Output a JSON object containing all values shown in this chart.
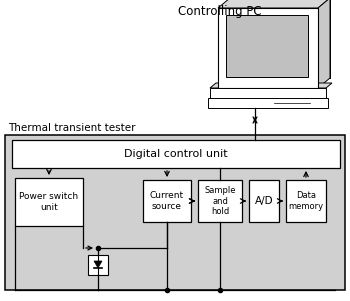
{
  "white": "#ffffff",
  "black": "#000000",
  "light_gray": "#d0d0d0",
  "mid_gray": "#b8b8b8",
  "controlling_pc_text": "Controlling PC",
  "thermal_tester_text": "Thermal transient tester",
  "digital_control_text": "Digital control unit",
  "power_switch_text": "Power switch\nunit",
  "current_source_text": "Current\nsource",
  "sample_hold_text": "Sample\nand\nhold",
  "ad_text": "A/D",
  "data_memory_text": "Data\nmemory"
}
